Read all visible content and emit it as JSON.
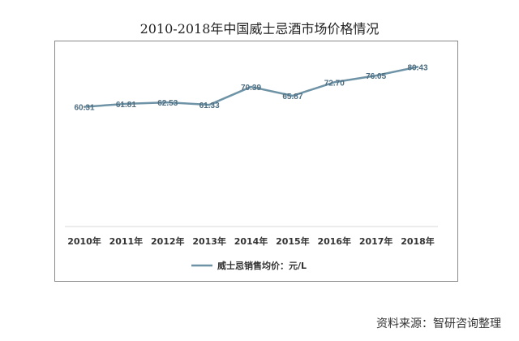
{
  "page": {
    "title": "2010-2018年中国威士忌酒市场价格情况",
    "source": "资料来源：智研咨询整理"
  },
  "chart_data": {
    "type": "line",
    "title": "2010-2018年中国威士忌酒市场价格情况",
    "categories": [
      "2010年",
      "2011年",
      "2012年",
      "2013年",
      "2014年",
      "2015年",
      "2016年",
      "2017年",
      "2018年"
    ],
    "series": [
      {
        "name": "威士忌销售均价：元/L",
        "values": [
          60.31,
          61.81,
          62.53,
          61.33,
          70.39,
          65.87,
          72.7,
          76.05,
          80.43
        ],
        "labels": [
          "60.31",
          "61.81",
          "62.53",
          "61.33",
          "70.39",
          "65.87",
          "72.70",
          "76.05",
          "80.43"
        ],
        "color": "#6f93a6"
      }
    ],
    "ylim": [
      0,
      90
    ],
    "grid": false,
    "legend": "bottom",
    "colors": {
      "line": "#6f93a6",
      "axis": "#d9d9d9",
      "text": "#333333",
      "label": "#4d6d80"
    }
  }
}
